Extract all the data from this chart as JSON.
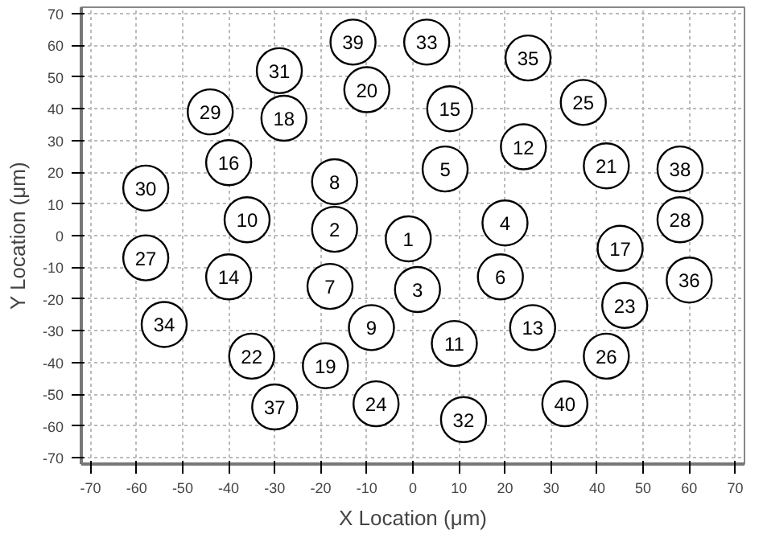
{
  "chart_data": {
    "type": "scatter",
    "xlabel": "X Location (μm)",
    "ylabel": "Y Location (μm)",
    "xlim": [
      -72,
      72
    ],
    "ylim": [
      -72,
      72
    ],
    "xticks": [
      -70,
      -60,
      -50,
      -40,
      -30,
      -20,
      -10,
      0,
      10,
      20,
      30,
      40,
      50,
      60,
      70
    ],
    "yticks": [
      -70,
      -60,
      -50,
      -40,
      -30,
      -20,
      -10,
      0,
      10,
      20,
      30,
      40,
      50,
      60,
      70
    ],
    "grid": true,
    "marker": "circle",
    "series": [
      {
        "color": "#000000",
        "x": [
          -1,
          -17,
          1,
          20,
          7,
          19,
          -18,
          -17,
          -9,
          -36,
          9,
          24,
          26,
          -40,
          8,
          -40,
          45,
          -28,
          -19,
          -10,
          42,
          -35,
          46,
          -8,
          37,
          42,
          -58,
          58,
          -44,
          -58,
          -29,
          11,
          3,
          -54,
          25,
          60,
          -30,
          58,
          -13,
          33
        ],
        "values": [
          -1,
          2,
          -17,
          4,
          21,
          -13,
          -16,
          17,
          -29,
          5,
          -34,
          28,
          -29,
          -13,
          40,
          23,
          -4,
          37,
          -41,
          46,
          22,
          -38,
          -22,
          -53,
          42,
          -38,
          -7,
          5,
          39,
          15,
          52,
          -58,
          61,
          -28,
          56,
          -14,
          -54,
          21,
          61,
          -53
        ]
      }
    ],
    "annotations": [
      {
        "text": "10",
        "x": -36,
        "y": 5
      },
      {
        "text": "11",
        "x": 9,
        "y": -34
      },
      {
        "text": "12",
        "x": 24,
        "y": 28
      },
      {
        "text": "13",
        "x": 26,
        "y": -29
      },
      {
        "text": "14",
        "x": -40,
        "y": -13
      },
      {
        "text": "15",
        "x": 8,
        "y": 40
      },
      {
        "text": "16",
        "x": -40,
        "y": 23
      },
      {
        "text": "17",
        "x": 45,
        "y": -4
      },
      {
        "text": "18",
        "x": -28,
        "y": 37
      },
      {
        "text": "19",
        "x": -19,
        "y": -41
      },
      {
        "text": "20",
        "x": -10,
        "y": 46
      },
      {
        "text": "21",
        "x": 42,
        "y": 22
      },
      {
        "text": "22",
        "x": -35,
        "y": -38
      },
      {
        "text": "23",
        "x": 46,
        "y": -22
      },
      {
        "text": "24",
        "x": -8,
        "y": -53
      },
      {
        "text": "25",
        "x": 37,
        "y": 42
      },
      {
        "text": "26",
        "x": 42,
        "y": -38
      },
      {
        "text": "27",
        "x": -58,
        "y": -7
      },
      {
        "text": "28",
        "x": 58,
        "y": 5
      },
      {
        "text": "29",
        "x": -44,
        "y": 39
      },
      {
        "text": "30",
        "x": -58,
        "y": 15
      },
      {
        "text": "31",
        "x": -29,
        "y": 52
      },
      {
        "text": "32",
        "x": 11,
        "y": -58
      },
      {
        "text": "33",
        "x": 3,
        "y": 61
      },
      {
        "text": "34",
        "x": -54,
        "y": -28
      },
      {
        "text": "35",
        "x": 25,
        "y": 56
      },
      {
        "text": "36",
        "x": 60,
        "y": -14
      },
      {
        "text": "37",
        "x": -30,
        "y": -54
      },
      {
        "text": "38",
        "x": 58,
        "y": 21
      },
      {
        "text": "39",
        "x": -13,
        "y": 61
      },
      {
        "text": "40",
        "x": 33,
        "y": -53
      },
      {
        "text": "1",
        "x": -1,
        "y": -1
      },
      {
        "text": "2",
        "x": -17,
        "y": 2
      },
      {
        "text": "3",
        "x": 1,
        "y": -17
      },
      {
        "text": "4",
        "x": 20,
        "y": 4
      },
      {
        "text": "5",
        "x": 7,
        "y": 21
      },
      {
        "text": "6",
        "x": 19,
        "y": -13
      },
      {
        "text": "7",
        "x": -18,
        "y": -16
      },
      {
        "text": "8",
        "x": -17,
        "y": 17
      },
      {
        "text": "9",
        "x": -9,
        "y": -29
      }
    ]
  }
}
